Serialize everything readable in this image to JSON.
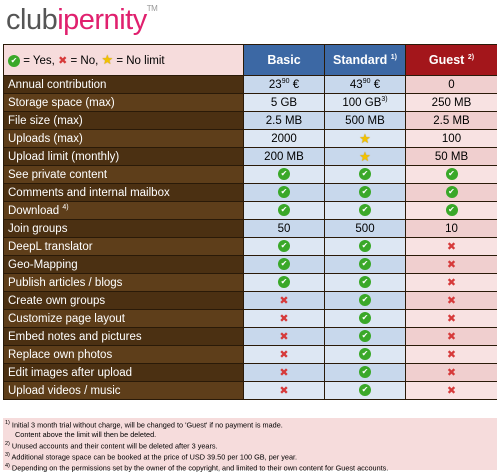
{
  "logo": {
    "club": "club",
    "ipernity": "ipernity",
    "tm": "TM"
  },
  "legend": [
    {
      "icon": "✔",
      "text": " = Yes, "
    },
    {
      "icon": "✖",
      "text": " = No, "
    },
    {
      "icon": "★",
      "text": " = No limit"
    }
  ],
  "columns": [
    {
      "name": "Basic"
    },
    {
      "name": "Standard",
      "sup": "1)"
    },
    {
      "name": "Guest",
      "sup": "2)"
    }
  ],
  "rows": [
    {
      "label": "Annual contribution",
      "cells": [
        {
          "text": "23",
          "sup": "90",
          "after": "€"
        },
        {
          "text": "43",
          "sup": "90",
          "after": "€"
        },
        "0"
      ]
    },
    {
      "label": "Storage space (max)",
      "cells": [
        "5 GB",
        {
          "text": "100 GB",
          "sup": "3)"
        },
        "250 MB"
      ]
    },
    {
      "label": "File size (max)",
      "cells": [
        "2.5 MB",
        "500 MB",
        "2.5 MB"
      ]
    },
    {
      "label": "Uploads (max)",
      "cells": [
        "2000",
        "★",
        "100"
      ]
    },
    {
      "label": "Upload limit (monthly)",
      "cells": [
        "200 MB",
        "★",
        "50 MB"
      ]
    },
    {
      "label": "See private content",
      "cells": [
        "✔",
        "✔",
        "✔"
      ]
    },
    {
      "label": "Comments and internal mailbox",
      "cells": [
        "✔",
        "✔",
        "✔"
      ]
    },
    {
      "label": "Download",
      "sup": "4)",
      "cells": [
        "✔",
        "✔",
        "✔"
      ]
    },
    {
      "label": "Join groups",
      "cells": [
        "50",
        "500",
        "10"
      ]
    },
    {
      "label": "DeepL translator",
      "cells": [
        "✔",
        "✔",
        "✖"
      ]
    },
    {
      "label": "Geo-Mapping",
      "cells": [
        "✔",
        "✔",
        "✖"
      ]
    },
    {
      "label": "Publish articles / blogs",
      "cells": [
        "✔",
        "✔",
        "✖"
      ]
    },
    {
      "label": "Create own groups",
      "cells": [
        "✖",
        "✔",
        "✖"
      ]
    },
    {
      "label": "Customize page layout",
      "cells": [
        "✖",
        "✔",
        "✖"
      ]
    },
    {
      "label": "Embed notes and pictures",
      "cells": [
        "✖",
        "✔",
        "✖"
      ]
    },
    {
      "label": "Replace own photos",
      "cells": [
        "✖",
        "✔",
        "✖"
      ]
    },
    {
      "label": "Edit images after upload",
      "cells": [
        "✖",
        "✔",
        "✖"
      ]
    },
    {
      "label": "Upload videos / music",
      "cells": [
        "✖",
        "✔",
        "✖"
      ]
    }
  ],
  "footnotes": [
    {
      "mark": "1)",
      "text": "Initial 3 month trial without charge, will be changed to 'Guest' if no payment is made."
    },
    {
      "text": "Content above the limit will then be deleted."
    },
    {
      "mark": "2)",
      "text": "Unused accounts and their content will be deleted after 3 years."
    },
    {
      "mark": "3)",
      "text": "Additional storage space can be booked at the price of USD 39.50 per 100 GB, per year."
    },
    {
      "mark": "4)",
      "text": "Depending on the permissions set by the owner of the copyright, and limited to their own content for Guest accounts."
    }
  ]
}
